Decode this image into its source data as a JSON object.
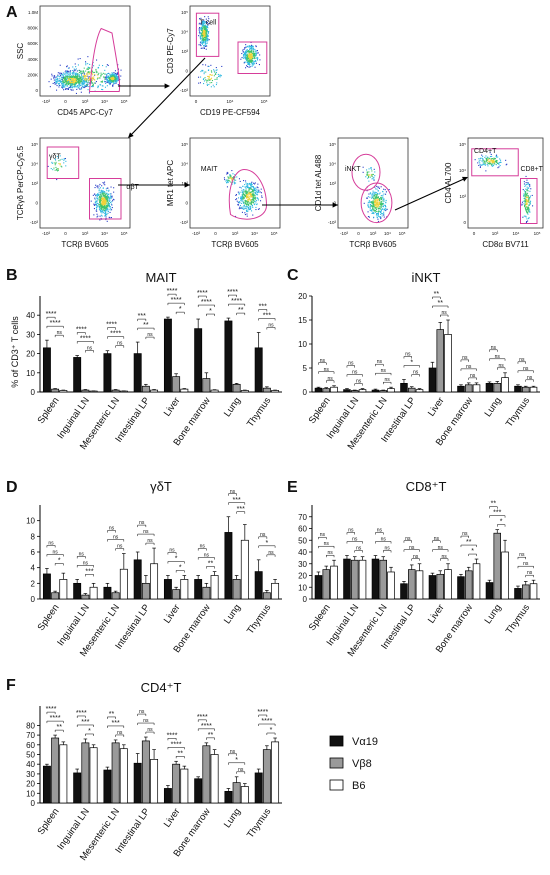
{
  "panel_letters": [
    "A",
    "B",
    "C",
    "D",
    "E",
    "F"
  ],
  "flow": {
    "plots": [
      {
        "id": "p1",
        "x_label": "CD45 APC-Cy7",
        "y_label": "SSC",
        "gate_labels": [],
        "y_ticks": [
          "1.0M",
          "800K",
          "600K",
          "400K",
          "200K",
          "0"
        ],
        "x_ticks": [
          "-10³",
          "0",
          "10³",
          "10⁴",
          "10⁵"
        ]
      },
      {
        "id": "p2",
        "x_label": "CD19 PE-CF594",
        "y_label": "CD3 PE-Cy7",
        "gate_labels": [
          "T cell"
        ],
        "y_ticks": [
          "10⁵",
          "10⁴",
          "10³",
          "0",
          "-10³"
        ],
        "x_ticks": [
          "0",
          "10⁴",
          "10⁵"
        ]
      },
      {
        "id": "p3",
        "x_label": "TCRβ BV605",
        "y_label": "TCRγδ PerCP-Cy5.5",
        "gate_labels": [
          "γδT",
          "αβT"
        ],
        "y_ticks": [
          "10⁵",
          "10⁴",
          "10³",
          "0",
          "-10³"
        ],
        "x_ticks": [
          "-10³",
          "0",
          "10³",
          "10⁴",
          "10⁵"
        ]
      },
      {
        "id": "p4",
        "x_label": "TCRβ BV605",
        "y_label": "MR1 tet APC",
        "gate_labels": [
          "MAIT"
        ],
        "y_ticks": [
          "10⁵",
          "10⁴",
          "10³",
          "0",
          "-10³"
        ],
        "x_ticks": [
          "-10³",
          "0",
          "10³",
          "10⁴",
          "10⁵"
        ]
      },
      {
        "id": "p5",
        "x_label": "TCRβ BV605",
        "y_label": "CD1d tet AL488",
        "gate_labels": [
          "iNKT"
        ],
        "y_ticks": [
          "10⁵",
          "10⁴",
          "10³",
          "0",
          "-10³"
        ],
        "x_ticks": [
          "-10³",
          "0",
          "10³",
          "10⁴",
          "10⁵"
        ]
      },
      {
        "id": "p6",
        "x_label": "CD8α BV711",
        "y_label": "CD4 AL700",
        "gate_labels": [
          "CD4+T",
          "CD8+T"
        ],
        "y_ticks": [
          "10⁵",
          "10⁴",
          "10³",
          "0"
        ],
        "x_ticks": [
          "0",
          "10³",
          "10⁴",
          "10⁵"
        ]
      }
    ]
  },
  "colors": {
    "Va19": "#111111",
    "Vb8": "#9a9a9a",
    "B6": "#ffffff",
    "gate": "#d63d9a"
  },
  "legend": [
    {
      "key": "Va19",
      "label": "Vα19"
    },
    {
      "key": "Vb8",
      "label": "Vβ8"
    },
    {
      "key": "B6",
      "label": "B6"
    }
  ],
  "chart_data": [
    {
      "type": "bar",
      "panel": "B",
      "title": "MAIT",
      "ylabel": "% of CD3⁺ T cells",
      "ylim": [
        0,
        50
      ],
      "yticks": [
        0,
        10,
        20,
        30,
        40
      ],
      "categories": [
        "Spleen",
        "Inguinal LN",
        "Mesenteric LN",
        "Intestinal LP",
        "Liver",
        "Bone marrow",
        "Lung",
        "Thymus"
      ],
      "series": [
        {
          "key": "Va19",
          "name": "Vα19",
          "values": [
            23,
            18,
            20,
            20,
            38,
            33,
            37,
            23
          ],
          "errors": [
            4,
            1,
            1.5,
            6,
            1,
            5,
            1.5,
            8
          ]
        },
        {
          "key": "Vb8",
          "name": "Vβ8",
          "values": [
            1.5,
            1,
            1,
            3,
            8,
            7,
            4,
            2
          ],
          "errors": [
            0.3,
            0.3,
            0.3,
            1,
            1.5,
            3,
            0.5,
            0.7
          ]
        },
        {
          "key": "B6",
          "name": "B6",
          "values": [
            0.8,
            0.5,
            0.5,
            1,
            1.5,
            1,
            0.8,
            0.8
          ],
          "errors": [
            0.2,
            0.1,
            0.1,
            0.3,
            0.3,
            0.2,
            0.2,
            0.2
          ]
        }
      ],
      "sig": [
        [
          [
            "****",
            "****",
            "ns"
          ]
        ],
        [
          [
            "****",
            "****",
            "ns"
          ]
        ],
        [
          [
            "****",
            "****",
            "ns"
          ]
        ],
        [
          [
            "***",
            "**",
            "ns"
          ]
        ],
        [
          [
            "****",
            "****",
            "*"
          ]
        ],
        [
          [
            "****",
            "****",
            "*"
          ]
        ],
        [
          [
            "****",
            "****",
            "**"
          ]
        ],
        [
          [
            "***",
            "***",
            "ns"
          ]
        ]
      ]
    },
    {
      "type": "bar",
      "panel": "C",
      "title": "iNKT",
      "ylabel": "",
      "ylim": [
        0,
        20
      ],
      "yticks": [
        0,
        5,
        10,
        15,
        20
      ],
      "categories": [
        "Spleen",
        "Inguinal LN",
        "Mesenteric LN",
        "Intestinal LP",
        "Liver",
        "Bone marrow",
        "Lung",
        "Thymus"
      ],
      "series": [
        {
          "key": "Va19",
          "name": "Vα19",
          "values": [
            0.8,
            0.5,
            0.4,
            1.8,
            5,
            1.2,
            1.8,
            1.2
          ],
          "errors": [
            0.2,
            0.2,
            0.2,
            0.8,
            1.2,
            0.3,
            0.3,
            0.3
          ]
        },
        {
          "key": "Vb8",
          "name": "Vβ8",
          "values": [
            0.7,
            0.3,
            0.3,
            0.8,
            13,
            1.5,
            1.8,
            1
          ],
          "errors": [
            0.2,
            0.1,
            0.1,
            0.3,
            1.5,
            0.4,
            0.4,
            0.2
          ]
        },
        {
          "key": "B6",
          "name": "B6",
          "values": [
            1,
            0.5,
            0.7,
            0.5,
            12,
            1.5,
            3,
            1
          ],
          "errors": [
            0.3,
            0.2,
            0.3,
            0.2,
            3,
            0.4,
            1,
            0.2
          ]
        }
      ],
      "sig": [
        [
          [
            "ns",
            "ns",
            "ns"
          ]
        ],
        [
          [
            "ns",
            "ns",
            "ns"
          ]
        ],
        [
          [
            "ns",
            "ns",
            "ns"
          ]
        ],
        [
          [
            "ns",
            "*",
            "ns"
          ]
        ],
        [
          [
            "**",
            "**",
            "ns"
          ]
        ],
        [
          [
            "ns",
            "ns",
            "ns"
          ]
        ],
        [
          [
            "ns",
            "ns",
            "ns"
          ]
        ],
        [
          [
            "ns",
            "ns",
            "ns"
          ]
        ]
      ]
    },
    {
      "type": "bar",
      "panel": "D",
      "title": "γδT",
      "ylabel": "",
      "ylim": [
        0,
        12
      ],
      "yticks": [
        0,
        2,
        4,
        6,
        8,
        10
      ],
      "categories": [
        "Spleen",
        "Inguinal LN",
        "Mesenteric LN",
        "Intestinal LP",
        "Liver",
        "Bone marrow",
        "Lung",
        "Thymus"
      ],
      "series": [
        {
          "key": "Va19",
          "name": "Vα19",
          "values": [
            3.2,
            2,
            1.5,
            5,
            2.5,
            2.5,
            8.5,
            3.5
          ],
          "errors": [
            0.7,
            0.5,
            0.5,
            1,
            0.5,
            0.5,
            2,
            1.5
          ]
        },
        {
          "key": "Vb8",
          "name": "Vβ8",
          "values": [
            0.8,
            0.5,
            0.8,
            2,
            1.2,
            1.5,
            2.5,
            0.8
          ],
          "errors": [
            0.2,
            0.2,
            0.2,
            1,
            0.3,
            0.5,
            0.5,
            0.3
          ]
        },
        {
          "key": "B6",
          "name": "B6",
          "values": [
            2.5,
            1.5,
            3.8,
            4.5,
            2.5,
            3,
            7.5,
            2
          ],
          "errors": [
            0.8,
            0.5,
            2,
            2,
            0.5,
            0.5,
            2,
            0.5
          ]
        }
      ],
      "sig": [
        [
          [
            "ns",
            "ns",
            "*"
          ]
        ],
        [
          [
            "ns",
            "ns",
            "***"
          ]
        ],
        [
          [
            "ns",
            "ns",
            "ns"
          ]
        ],
        [
          [
            "ns",
            "ns",
            "ns"
          ]
        ],
        [
          [
            "ns",
            "*",
            "*"
          ]
        ],
        [
          [
            "ns",
            "ns",
            "**"
          ]
        ],
        [
          [
            "ns",
            "***",
            "***"
          ]
        ],
        [
          [
            "ns",
            "*",
            "ns"
          ]
        ]
      ]
    },
    {
      "type": "bar",
      "panel": "E",
      "title": "CD8⁺T",
      "ylabel": "",
      "ylim": [
        0,
        80
      ],
      "yticks": [
        0,
        10,
        20,
        30,
        40,
        50,
        60,
        70
      ],
      "categories": [
        "Spleen",
        "Inguinal LN",
        "Mesenteric LN",
        "Intestinal LP",
        "Liver",
        "Bone marrow",
        "Lung",
        "Thymus"
      ],
      "series": [
        {
          "key": "Va19",
          "name": "Vα19",
          "values": [
            20,
            34,
            34,
            13,
            20,
            19,
            14,
            9
          ],
          "errors": [
            3,
            3,
            3,
            2,
            2,
            2,
            2,
            2
          ]
        },
        {
          "key": "Vb8",
          "name": "Vβ8",
          "values": [
            25,
            33,
            33,
            25,
            21,
            24,
            56,
            12
          ],
          "errors": [
            3,
            3,
            3,
            4,
            3,
            3,
            3,
            3
          ]
        },
        {
          "key": "B6",
          "name": "B6",
          "values": [
            28,
            33,
            23,
            24,
            25,
            30,
            40,
            13
          ],
          "errors": [
            5,
            3,
            4,
            6,
            5,
            4,
            10,
            3
          ]
        }
      ],
      "sig": [
        [
          [
            "ns",
            "ns",
            "ns"
          ]
        ],
        [
          [
            "ns",
            "ns",
            "ns"
          ]
        ],
        [
          [
            "ns",
            "ns",
            "ns"
          ]
        ],
        [
          [
            "ns",
            "ns",
            "ns"
          ]
        ],
        [
          [
            "ns",
            "ns",
            "ns"
          ]
        ],
        [
          [
            "ns",
            "**",
            "*"
          ]
        ],
        [
          [
            "**",
            "***",
            "*"
          ]
        ],
        [
          [
            "ns",
            "ns",
            "ns"
          ]
        ]
      ]
    },
    {
      "type": "bar",
      "panel": "F",
      "title": "CD4⁺T",
      "ylabel": "",
      "ylim": [
        0,
        100
      ],
      "yticks": [
        0,
        10,
        20,
        30,
        40,
        50,
        60,
        70,
        80
      ],
      "categories": [
        "Spleen",
        "Inguinal LN",
        "Mesenteric LN",
        "Intestinal LP",
        "Liver",
        "Bone marrow",
        "Lung",
        "Thymus"
      ],
      "series": [
        {
          "key": "Va19",
          "name": "Vα19",
          "values": [
            38,
            31,
            34,
            41,
            15,
            25,
            12,
            31
          ],
          "errors": [
            2,
            4,
            3,
            10,
            3,
            2,
            3,
            4
          ]
        },
        {
          "key": "Vb8",
          "name": "Vβ8",
          "values": [
            67,
            62,
            62,
            64,
            40,
            59,
            21,
            55
          ],
          "errors": [
            3,
            4,
            3,
            4,
            3,
            3,
            6,
            4
          ]
        },
        {
          "key": "B6",
          "name": "B6",
          "values": [
            60,
            57,
            56,
            45,
            35,
            50,
            17,
            63
          ],
          "errors": [
            3,
            3,
            4,
            10,
            3,
            5,
            3,
            4
          ]
        }
      ],
      "sig": [
        [
          [
            "****",
            "****",
            "**"
          ]
        ],
        [
          [
            "****",
            "***",
            "*"
          ]
        ],
        [
          [
            "**",
            "***",
            "ns"
          ]
        ],
        [
          [
            "ns",
            "ns",
            "ns"
          ]
        ],
        [
          [
            "****",
            "****",
            "**"
          ]
        ],
        [
          [
            "****",
            "****",
            "**"
          ]
        ],
        [
          [
            "ns",
            "*",
            "ns"
          ]
        ],
        [
          [
            "****",
            "****",
            "*"
          ]
        ]
      ]
    }
  ]
}
